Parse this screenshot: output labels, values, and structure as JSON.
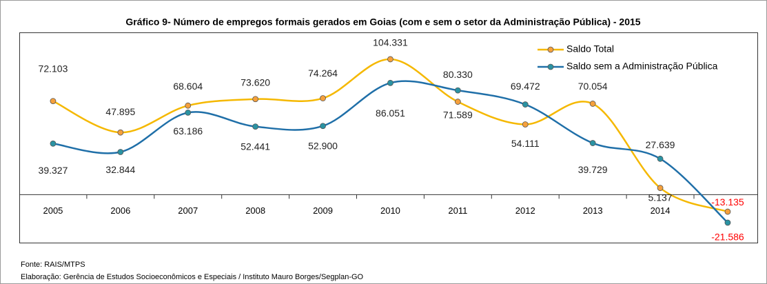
{
  "chart_data": {
    "type": "line",
    "title": "Gráfico 9- Número de empregos  formais gerados em Goias  (com e sem  o setor da Administração Pública) - 2015",
    "categories": [
      "2005",
      "2006",
      "2007",
      "2008",
      "2009",
      "2010",
      "2011",
      "2012",
      "2013",
      "2014",
      null
    ],
    "series": [
      {
        "name": "Saldo Total",
        "color": "#f5b800",
        "marker_color": "#f5a03c",
        "values": [
          72103,
          47895,
          68604,
          73620,
          74264,
          104331,
          71589,
          54111,
          70054,
          5137,
          -13135
        ],
        "value_labels": [
          "72.103",
          "47.895",
          "68.604",
          "73.620",
          "74.264",
          "104.331",
          "71.589",
          "54.111",
          "70.054",
          "5.137",
          "-13.135"
        ]
      },
      {
        "name": "Saldo sem a Administração Pública",
        "color": "#1f6fa8",
        "marker_color": "#2a93a3",
        "values": [
          39327,
          32844,
          63186,
          52441,
          52900,
          86051,
          80330,
          69472,
          39729,
          27639,
          -21586
        ],
        "value_labels": [
          "39.327",
          "32.844",
          "63.186",
          "52.441",
          "52.900",
          "86.051",
          "80.330",
          "69.472",
          "39.729",
          "27.639",
          "-21.586"
        ]
      }
    ],
    "ylim": [
      -37000,
      125000
    ],
    "negative_label_color": "#ff0000",
    "legend": "upper right",
    "source": "Fonte: RAIS/MTPS",
    "credit": "Elaboração: Gerência de Estudos Socioeconômicos e Especiais / Instituto  Mauro Borges/Segplan-GO"
  }
}
